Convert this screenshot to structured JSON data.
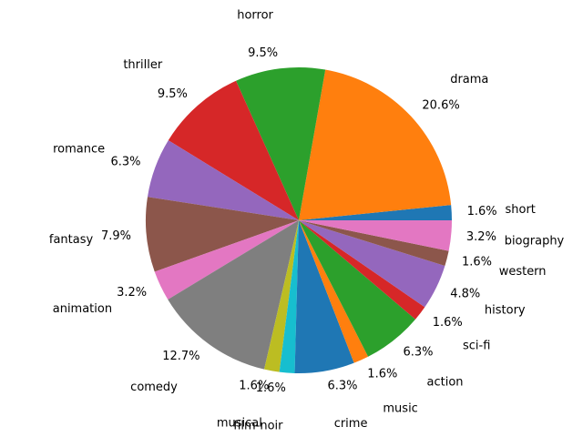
{
  "chart_data": {
    "type": "pie",
    "title": "",
    "start_angle": 0,
    "direction": "counterclockwise",
    "slices": [
      {
        "label": "short",
        "pct_label": "1.6%",
        "value": 1.6,
        "color": "#1f77b4"
      },
      {
        "label": "drama",
        "pct_label": "20.6%",
        "value": 20.6,
        "color": "#ff7f0e"
      },
      {
        "label": "horror",
        "pct_label": "9.5%",
        "value": 9.5,
        "color": "#2ca02c"
      },
      {
        "label": "thriller",
        "pct_label": "9.5%",
        "value": 9.5,
        "color": "#d62728"
      },
      {
        "label": "romance",
        "pct_label": "6.3%",
        "value": 6.3,
        "color": "#9467bd"
      },
      {
        "label": "fantasy",
        "pct_label": "7.9%",
        "value": 7.9,
        "color": "#8c564b"
      },
      {
        "label": "animation",
        "pct_label": "3.2%",
        "value": 3.2,
        "color": "#e377c2"
      },
      {
        "label": "comedy",
        "pct_label": "12.7%",
        "value": 12.7,
        "color": "#7f7f7f"
      },
      {
        "label": "musical",
        "pct_label": "1.6%",
        "value": 1.6,
        "color": "#bcbd22"
      },
      {
        "label": "film-noir",
        "pct_label": "1.6%",
        "value": 1.6,
        "color": "#17becf"
      },
      {
        "label": "crime",
        "pct_label": "6.3%",
        "value": 6.3,
        "color": "#1f77b4"
      },
      {
        "label": "music",
        "pct_label": "1.6%",
        "value": 1.6,
        "color": "#ff7f0e"
      },
      {
        "label": "action",
        "pct_label": "6.3%",
        "value": 6.3,
        "color": "#2ca02c"
      },
      {
        "label": "sci-fi",
        "pct_label": "1.6%",
        "value": 1.6,
        "color": "#d62728"
      },
      {
        "label": "history",
        "pct_label": "4.8%",
        "value": 4.8,
        "color": "#9467bd"
      },
      {
        "label": "western",
        "pct_label": "1.6%",
        "value": 1.6,
        "color": "#8c564b"
      },
      {
        "label": "biography",
        "pct_label": "3.2%",
        "value": 3.2,
        "color": "#e377c2"
      }
    ]
  }
}
